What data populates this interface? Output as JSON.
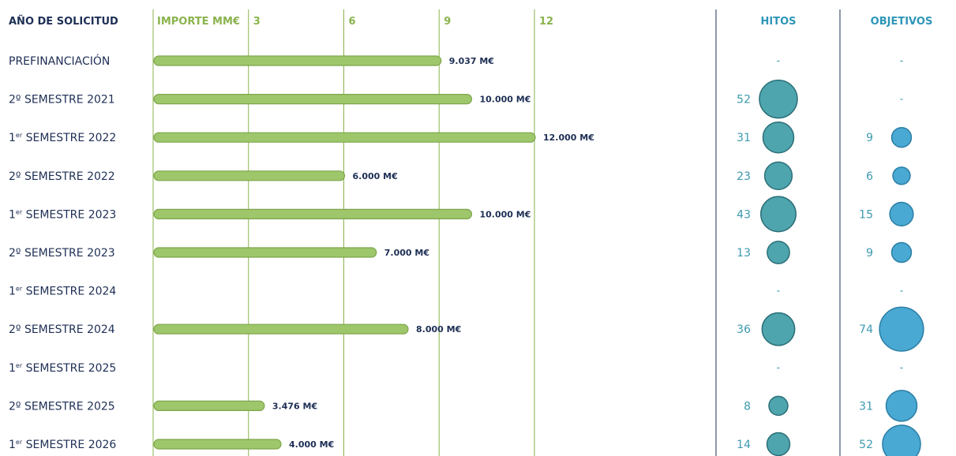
{
  "chart_data": {
    "type": "bar",
    "headers": {
      "year": "AÑO DE SOLICITUD",
      "amount": "IMPORTE MM€",
      "milestones": "HITOS",
      "objectives": "OBJETIVOS"
    },
    "x_ticks": [
      "3",
      "6",
      "9",
      "12"
    ],
    "xlim": [
      0,
      12
    ],
    "missing_marker": "-",
    "rows": [
      {
        "base": "PREFINANCIACIÓN",
        "sup": "",
        "suffix": "",
        "amount": 9.037,
        "amount_label": "9.037 M€",
        "hitos": null,
        "objetivos": null
      },
      {
        "base": "2º SEMESTRE ",
        "sup": "",
        "suffix": "2021",
        "amount": 10,
        "amount_label": "10.000 M€",
        "hitos": 52,
        "objetivos": null
      },
      {
        "base": "1",
        "sup": "er",
        "suffix": " SEMESTRE 2022",
        "amount": 12,
        "amount_label": "12.000 M€",
        "hitos": 31,
        "objetivos": 9
      },
      {
        "base": "2º SEMESTRE ",
        "sup": "",
        "suffix": "2022",
        "amount": 6,
        "amount_label": "6.000 M€",
        "hitos": 23,
        "objetivos": 6
      },
      {
        "base": "1",
        "sup": "er",
        "suffix": " SEMESTRE 2023",
        "amount": 10,
        "amount_label": "10.000 M€",
        "hitos": 43,
        "objetivos": 15
      },
      {
        "base": "2º SEMESTRE ",
        "sup": "",
        "suffix": "2023",
        "amount": 7,
        "amount_label": "7.000 M€",
        "hitos": 13,
        "objetivos": 9
      },
      {
        "base": "1",
        "sup": "er",
        "suffix": " SEMESTRE 2024",
        "amount": null,
        "amount_label": "",
        "hitos": null,
        "objetivos": null
      },
      {
        "base": "2º SEMESTRE ",
        "sup": "",
        "suffix": "2024",
        "amount": 8,
        "amount_label": "8.000 M€",
        "hitos": 36,
        "objetivos": 74
      },
      {
        "base": "1",
        "sup": "er",
        "suffix": " SEMESTRE 2025",
        "amount": null,
        "amount_label": "",
        "hitos": null,
        "objetivos": null
      },
      {
        "base": "2º SEMESTRE ",
        "sup": "",
        "suffix": "2025",
        "amount": 3.476,
        "amount_label": "3.476 M€",
        "hitos": 8,
        "objetivos": 31
      },
      {
        "base": "1",
        "sup": "er",
        "suffix": " SEMESTRE 2026",
        "amount": 4,
        "amount_label": "4.000 M€",
        "hitos": 14,
        "objetivos": 52
      }
    ],
    "colors": {
      "bar_fill": "#9ec66a",
      "bar_stroke": "#7fa64c",
      "gridline": "#8ab34d",
      "hitos_bubble": "#4ea5ad",
      "hitos_bubble_stroke": "#2c6f78",
      "objetivos_bubble": "#4aa9d2",
      "objetivos_bubble_stroke": "#2a7ea6",
      "divider": "#1e2f55"
    }
  }
}
